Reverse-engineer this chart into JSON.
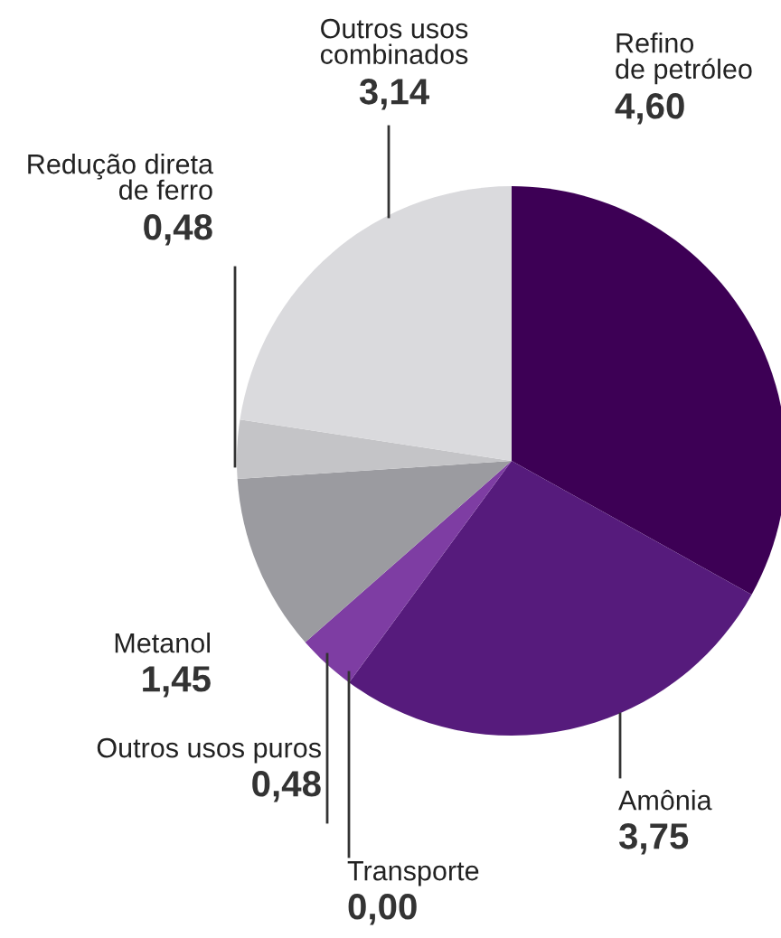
{
  "chart_data": {
    "type": "pie",
    "categories": [
      "Refino\nde petróleo",
      "Amônia",
      "Transporte",
      "Outros usos puros",
      "Metanol",
      "Redução direta\nde ferro",
      "Outros usos\ncombinados"
    ],
    "values": [
      4.6,
      3.75,
      0.0,
      0.48,
      1.45,
      0.48,
      3.14
    ],
    "value_labels": [
      "4,60",
      "3,75",
      "0,00",
      "0,48",
      "1,45",
      "0,48",
      "3,14"
    ],
    "colors": [
      "#3d0055",
      "#561b7c",
      "#6a2a90",
      "#7e3da3",
      "#9b9ba0",
      "#c4c4c7",
      "#dadadd"
    ]
  }
}
